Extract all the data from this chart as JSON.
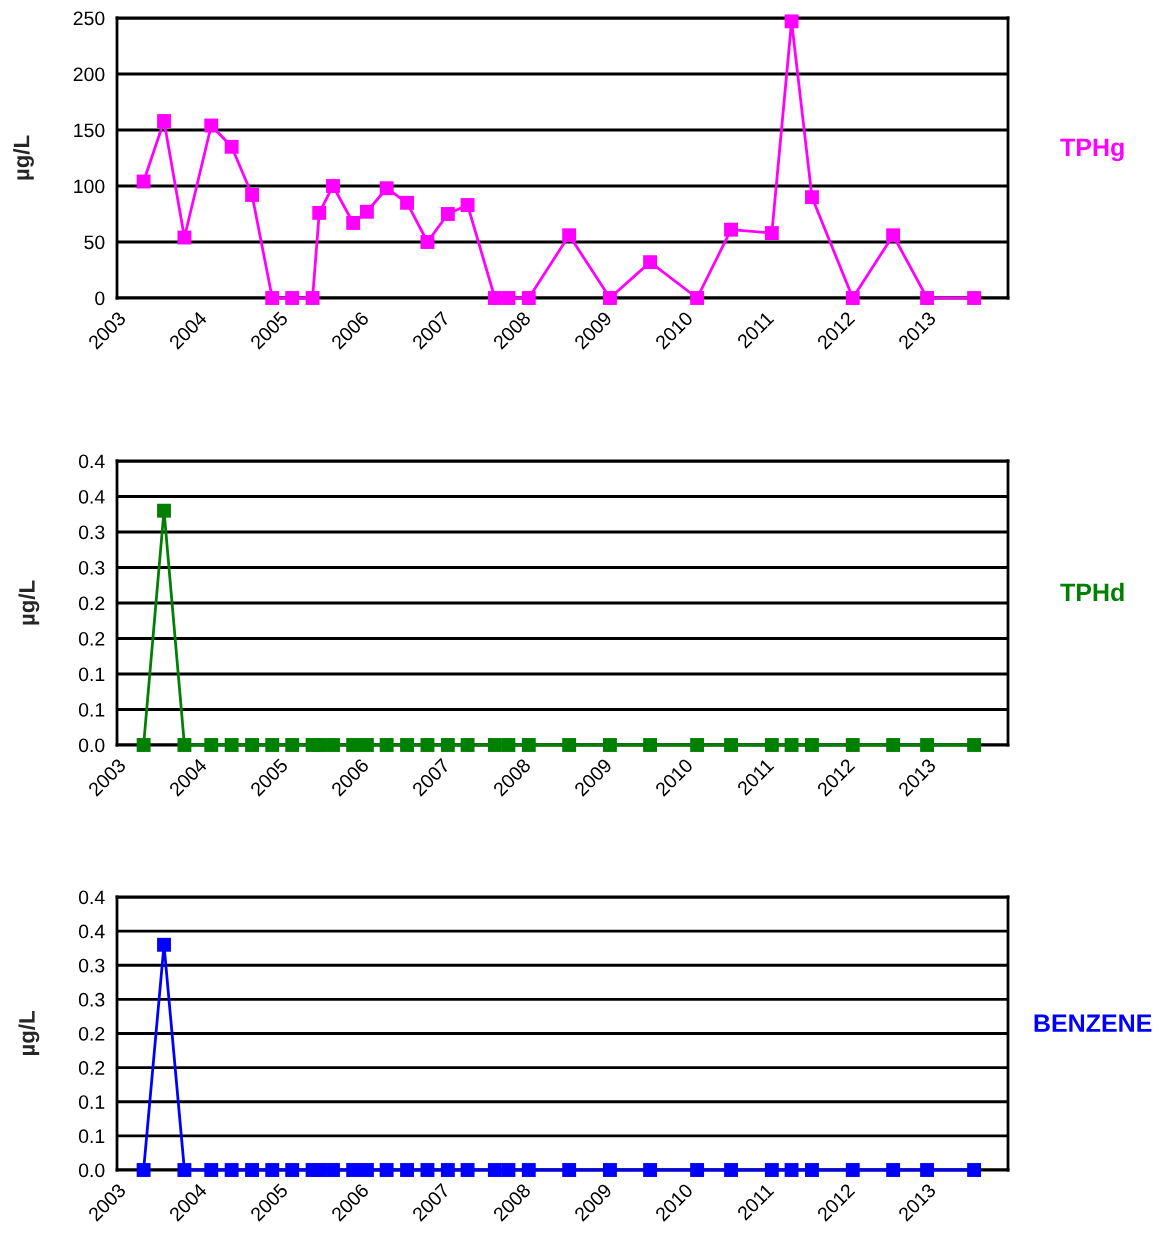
{
  "chart_data": [
    {
      "type": "line",
      "ylabel": "µg/L",
      "marker": "square",
      "line_style": "solid",
      "grid": "y",
      "legend": "right",
      "x": [
        "2003-05",
        "2003-08",
        "2003-11",
        "2004-03",
        "2004-06",
        "2004-09",
        "2004-12",
        "2005-03",
        "2005-06",
        "2005-07",
        "2005-09",
        "2005-12",
        "2006-02",
        "2006-05",
        "2006-08",
        "2006-11",
        "2007-02",
        "2007-05",
        "2007-09",
        "2007-11",
        "2008-02",
        "2008-08",
        "2009-02",
        "2009-08",
        "2010-03",
        "2010-08",
        "2011-02",
        "2011-05",
        "2011-08",
        "2012-02",
        "2012-08",
        "2013-01",
        "2013-08"
      ],
      "series": [
        {
          "name": "TPHg",
          "color": "#ff00ff",
          "values": [
            104,
            158,
            54,
            154,
            135,
            92,
            0,
            0,
            0,
            76,
            100,
            67,
            77,
            98,
            85,
            50,
            75,
            83,
            0,
            0,
            0,
            56,
            0,
            32,
            0,
            61,
            58,
            247,
            90,
            0,
            56,
            0,
            0
          ]
        }
      ],
      "xlim": [
        "2003",
        "2014"
      ],
      "xticks": [
        "2003",
        "2004",
        "2005",
        "2006",
        "2007",
        "2008",
        "2009",
        "2010",
        "2011",
        "2012",
        "2013"
      ],
      "ylim": [
        0,
        250
      ],
      "yticks": [
        0,
        50,
        100,
        150,
        200,
        250
      ]
    },
    {
      "type": "line",
      "ylabel": "µg/L",
      "marker": "square",
      "line_style": "solid",
      "grid": "y",
      "legend": "right",
      "x": [
        "2003-05",
        "2003-08",
        "2003-11",
        "2004-03",
        "2004-06",
        "2004-09",
        "2004-12",
        "2005-03",
        "2005-06",
        "2005-07",
        "2005-09",
        "2005-12",
        "2006-02",
        "2006-05",
        "2006-08",
        "2006-11",
        "2007-02",
        "2007-05",
        "2007-09",
        "2007-11",
        "2008-02",
        "2008-08",
        "2009-02",
        "2009-08",
        "2010-03",
        "2010-08",
        "2011-02",
        "2011-05",
        "2011-08",
        "2012-02",
        "2012-08",
        "2013-01",
        "2013-08"
      ],
      "series": [
        {
          "name": "TPHd",
          "color": "#008000",
          "values": [
            0,
            0.33,
            0,
            0,
            0,
            0,
            0,
            0,
            0,
            0,
            0,
            0,
            0,
            0,
            0,
            0,
            0,
            0,
            0,
            0,
            0,
            0,
            0,
            0,
            0,
            0,
            0,
            0,
            0,
            0,
            0,
            0,
            0
          ]
        }
      ],
      "xlim": [
        "2003",
        "2014"
      ],
      "xticks": [
        "2003",
        "2004",
        "2005",
        "2006",
        "2007",
        "2008",
        "2009",
        "2010",
        "2011",
        "2012",
        "2013"
      ],
      "ylim": [
        0,
        0.4
      ],
      "yticks": [
        {
          "value": 0,
          "label": "0.0"
        },
        {
          "value": 0.05,
          "label": "0.1"
        },
        {
          "value": 0.1,
          "label": "0.1"
        },
        {
          "value": 0.15,
          "label": "0.2"
        },
        {
          "value": 0.2,
          "label": "0.2"
        },
        {
          "value": 0.25,
          "label": "0.3"
        },
        {
          "value": 0.3,
          "label": "0.3"
        },
        {
          "value": 0.35,
          "label": "0.4"
        },
        {
          "value": 0.4,
          "label": "0.4"
        }
      ]
    },
    {
      "type": "line",
      "ylabel": "µg/L",
      "marker": "square",
      "line_style": "solid",
      "grid": "y",
      "legend": "right",
      "x": [
        "2003-05",
        "2003-08",
        "2003-11",
        "2004-03",
        "2004-06",
        "2004-09",
        "2004-12",
        "2005-03",
        "2005-06",
        "2005-07",
        "2005-09",
        "2005-12",
        "2006-02",
        "2006-05",
        "2006-08",
        "2006-11",
        "2007-02",
        "2007-05",
        "2007-09",
        "2007-11",
        "2008-02",
        "2008-08",
        "2009-02",
        "2009-08",
        "2010-03",
        "2010-08",
        "2011-02",
        "2011-05",
        "2011-08",
        "2012-02",
        "2012-08",
        "2013-01",
        "2013-08"
      ],
      "series": [
        {
          "name": "BENZENE",
          "color": "#0000ff",
          "values": [
            0,
            0.33,
            0,
            0,
            0,
            0,
            0,
            0,
            0,
            0,
            0,
            0,
            0,
            0,
            0,
            0,
            0,
            0,
            0,
            0,
            0,
            0,
            0,
            0,
            0,
            0,
            0,
            0,
            0,
            0,
            0,
            0,
            0
          ]
        }
      ],
      "xlim": [
        "2003",
        "2014"
      ],
      "xticks": [
        "2003",
        "2004",
        "2005",
        "2006",
        "2007",
        "2008",
        "2009",
        "2010",
        "2011",
        "2012",
        "2013"
      ],
      "ylim": [
        0,
        0.4
      ],
      "yticks": [
        {
          "value": 0,
          "label": "0.0"
        },
        {
          "value": 0.05,
          "label": "0.1"
        },
        {
          "value": 0.1,
          "label": "0.1"
        },
        {
          "value": 0.15,
          "label": "0.2"
        },
        {
          "value": 0.2,
          "label": "0.2"
        },
        {
          "value": 0.25,
          "label": "0.3"
        },
        {
          "value": 0.3,
          "label": "0.3"
        },
        {
          "value": 0.35,
          "label": "0.4"
        },
        {
          "value": 0.4,
          "label": "0.4"
        }
      ]
    }
  ]
}
